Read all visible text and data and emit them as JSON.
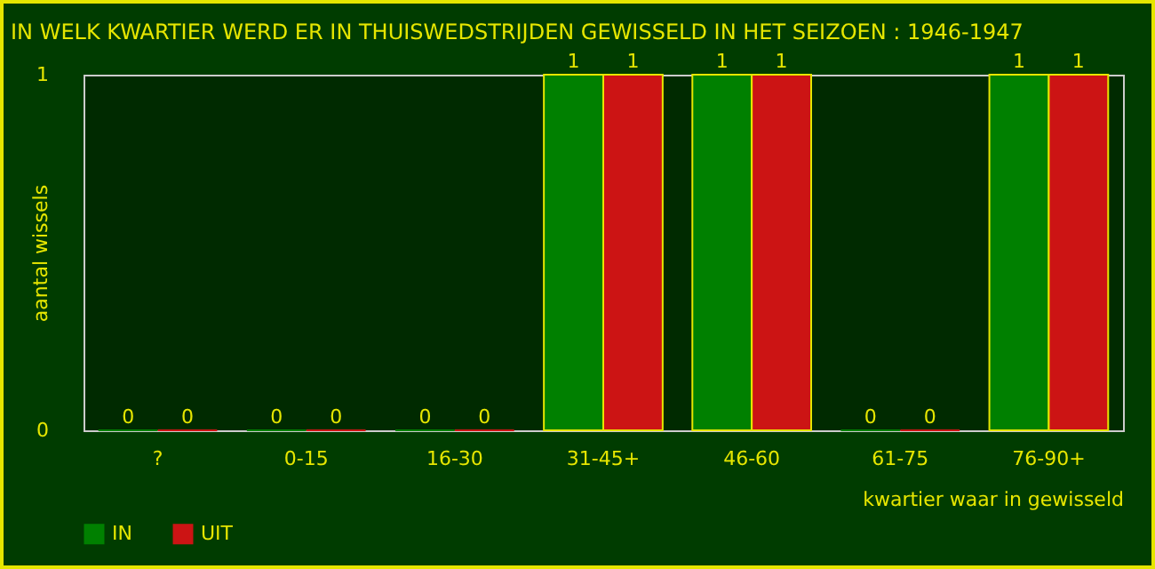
{
  "chart_data": {
    "type": "bar",
    "title": "IN WELK KWARTIER WERD ER IN THUISWEDSTRIJDEN GEWISSELD IN HET SEIZOEN : 1946-1947",
    "xlabel": "kwartier waar in gewisseld",
    "ylabel": "aantal wissels",
    "categories": [
      "?",
      "0-15",
      "16-30",
      "31-45+",
      "46-60",
      "61-75",
      "76-90+"
    ],
    "series": [
      {
        "name": "IN",
        "color": "#008000",
        "values": [
          0,
          0,
          0,
          1,
          1,
          0,
          1
        ]
      },
      {
        "name": "UIT",
        "color": "#cc1414",
        "values": [
          0,
          0,
          0,
          1,
          1,
          0,
          1
        ]
      }
    ],
    "ylim": [
      0,
      1
    ],
    "yticks": [
      0,
      1
    ],
    "grid": false,
    "legend": "bottom",
    "data_labels": true
  }
}
